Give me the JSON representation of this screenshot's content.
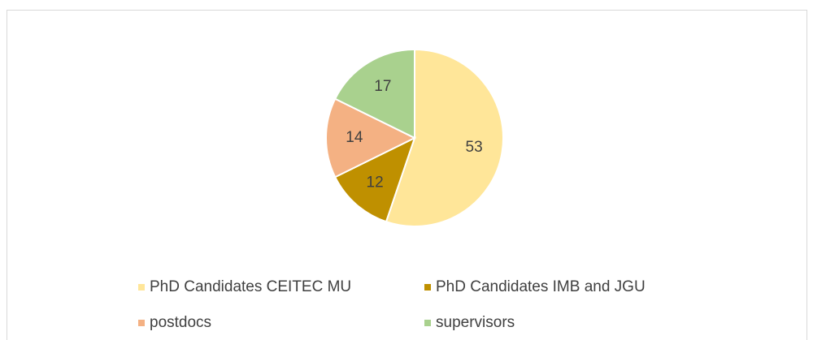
{
  "chart_data": {
    "type": "pie",
    "categories": [
      "PhD Candidates CEITEC MU",
      "PhD Candidates IMB and JGU",
      "postdocs",
      "supervisors"
    ],
    "values": [
      53,
      12,
      14,
      17
    ],
    "colors": [
      "#ffe699",
      "#bf9000",
      "#f4b183",
      "#a9d18e"
    ],
    "legend": "bottom"
  }
}
